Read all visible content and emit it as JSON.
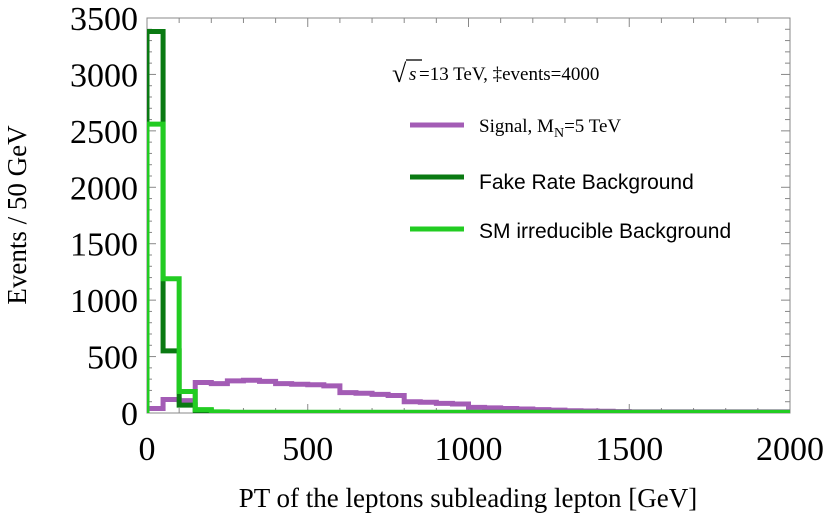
{
  "chart_data": {
    "type": "histogram",
    "title": "",
    "xlabel": "PT of the leptons subleading lepton [GeV]",
    "ylabel": "Events / 50 GeV",
    "xlim": [
      0,
      2000
    ],
    "ylim": [
      0,
      3500
    ],
    "bin_width": 50,
    "x_ticks": [
      0,
      500,
      1000,
      1500,
      2000
    ],
    "y_ticks": [
      0,
      500,
      1000,
      1500,
      2000,
      2500,
      3000,
      3500
    ],
    "annotation": {
      "sqrt_symbol": "√",
      "s": "s",
      "text": " =13 TeV, ‡events=4000"
    },
    "legend_position": "top-right",
    "series": [
      {
        "name": "Signal, M_N=5 TeV",
        "label_main": "Signal, M",
        "label_sub": "N",
        "label_tail": "=5 TeV",
        "color": "#a35cb5",
        "edges": [
          0,
          50,
          100,
          150,
          200,
          250,
          300,
          350,
          400,
          450,
          500,
          550,
          600,
          650,
          700,
          750,
          800,
          850,
          900,
          950,
          1000,
          1050,
          1100,
          1150,
          1200,
          1250,
          1300,
          1350,
          1400,
          1450,
          1500,
          2000
        ],
        "values": [
          40,
          120,
          110,
          270,
          260,
          285,
          290,
          280,
          260,
          255,
          250,
          240,
          180,
          175,
          165,
          155,
          100,
          95,
          85,
          80,
          50,
          45,
          40,
          35,
          30,
          25,
          20,
          18,
          15,
          12,
          10
        ]
      },
      {
        "name": "Fake Rate Background",
        "color": "#0a7a12",
        "edges": [
          0,
          50,
          100,
          150,
          200,
          2000
        ],
        "values": [
          3380,
          550,
          70,
          20,
          5
        ]
      },
      {
        "name": "SM irreducible Background",
        "color": "#22cc22",
        "edges": [
          0,
          50,
          100,
          150,
          200,
          250,
          2000
        ],
        "values": [
          2560,
          1190,
          190,
          30,
          10,
          5
        ]
      }
    ]
  }
}
